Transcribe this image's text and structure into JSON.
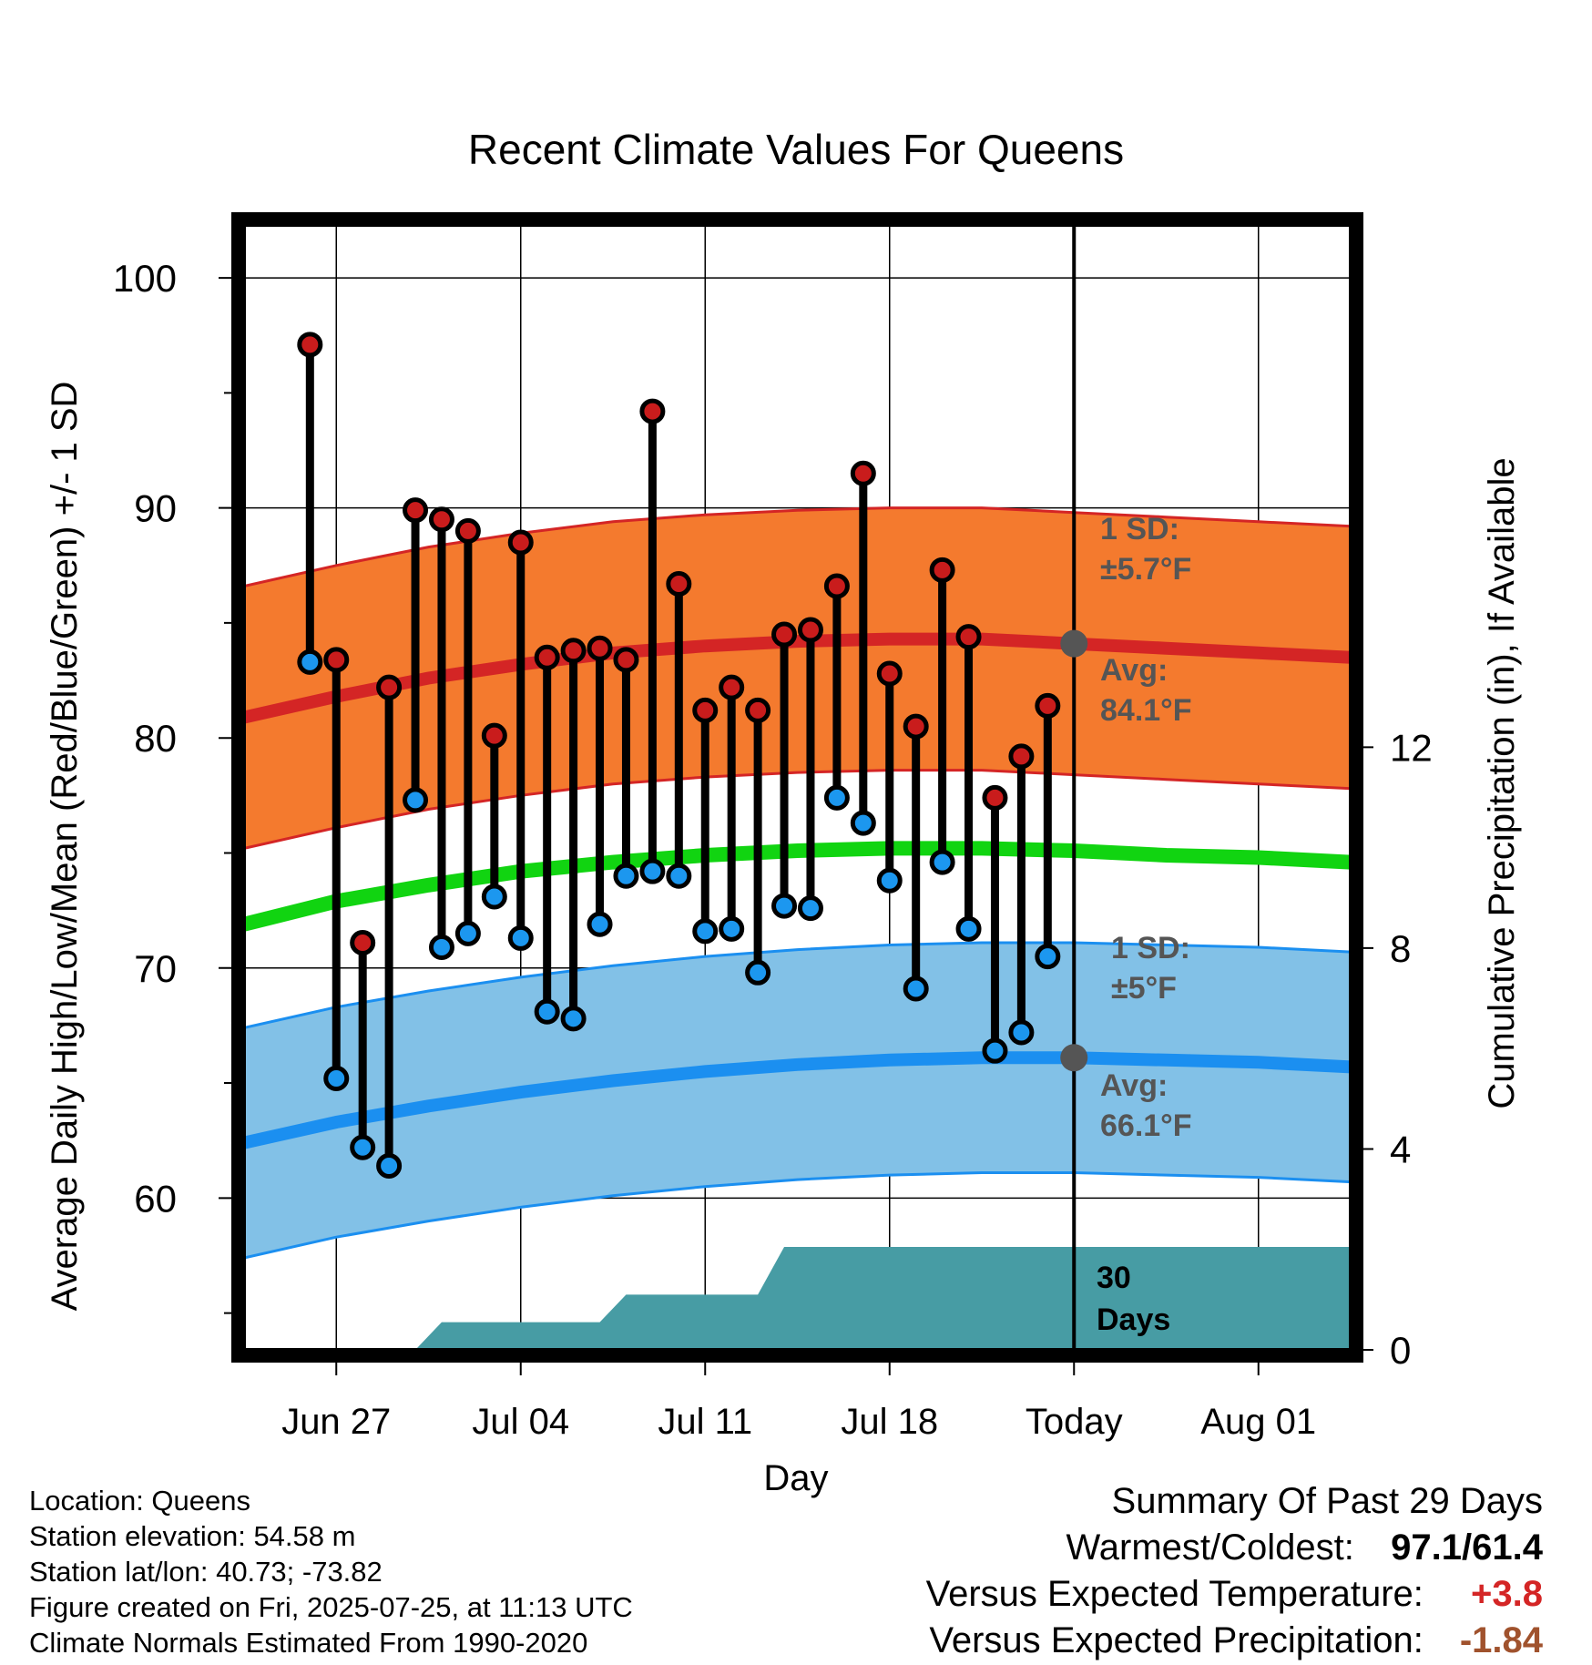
{
  "chart_data": {
    "type": "line",
    "title": "Recent Climate Values For Queens",
    "xlabel": "Day",
    "ylabel": "Average Daily High/Low/Mean (Red/Blue/Green) +/- 1 SD",
    "y2label": "Cumulative Precipitation (in), If Available",
    "xlim": [
      -3.5,
      38.5
    ],
    "ylim": [
      53.4,
      102.3
    ],
    "y2lim": [
      0,
      22.4
    ],
    "x_ticks": [
      {
        "x": 0,
        "label": "Jun 27"
      },
      {
        "x": 7,
        "label": "Jul 04"
      },
      {
        "x": 14,
        "label": "Jul 11"
      },
      {
        "x": 21,
        "label": "Jul 18"
      },
      {
        "x": 28,
        "label": "Today"
      },
      {
        "x": 35,
        "label": "Aug 01"
      }
    ],
    "y_ticks": [
      60,
      70,
      80,
      90,
      100
    ],
    "y2_ticks": [
      0,
      4,
      8,
      12
    ],
    "today_x": 28,
    "grid": true,
    "daily": [
      {
        "day": "Jun 26",
        "high": 97.1,
        "low": 83.3
      },
      {
        "day": "Jun 27",
        "high": 83.4,
        "low": 65.2
      },
      {
        "day": "Jun 28",
        "high": 71.1,
        "low": 62.2
      },
      {
        "day": "Jun 29",
        "high": 82.2,
        "low": 61.4
      },
      {
        "day": "Jun 30",
        "high": 89.9,
        "low": 77.3
      },
      {
        "day": "Jul 01",
        "high": 89.5,
        "low": 70.9
      },
      {
        "day": "Jul 02",
        "high": 89.0,
        "low": 71.5
      },
      {
        "day": "Jul 03",
        "high": 80.1,
        "low": 73.1
      },
      {
        "day": "Jul 04",
        "high": 88.5,
        "low": 71.3
      },
      {
        "day": "Jul 05",
        "high": 83.5,
        "low": 68.1
      },
      {
        "day": "Jul 06",
        "high": 83.8,
        "low": 67.8
      },
      {
        "day": "Jul 07",
        "high": 83.9,
        "low": 71.9
      },
      {
        "day": "Jul 08",
        "high": 83.4,
        "low": 74.0
      },
      {
        "day": "Jul 09",
        "high": 94.2,
        "low": 74.2
      },
      {
        "day": "Jul 10",
        "high": 86.7,
        "low": 74.0
      },
      {
        "day": "Jul 11",
        "high": 81.2,
        "low": 71.6
      },
      {
        "day": "Jul 12",
        "high": 82.2,
        "low": 71.7
      },
      {
        "day": "Jul 13",
        "high": 81.2,
        "low": 69.8
      },
      {
        "day": "Jul 14",
        "high": 84.5,
        "low": 72.7
      },
      {
        "day": "Jul 15",
        "high": 84.7,
        "low": 72.6
      },
      {
        "day": "Jul 16",
        "high": 86.6,
        "low": 77.4
      },
      {
        "day": "Jul 17",
        "high": 91.5,
        "low": 76.3
      },
      {
        "day": "Jul 18",
        "high": 82.8,
        "low": 73.8
      },
      {
        "day": "Jul 19",
        "high": 80.5,
        "low": 69.1
      },
      {
        "day": "Jul 20",
        "high": 87.3,
        "low": 74.6
      },
      {
        "day": "Jul 21",
        "high": 84.4,
        "low": 71.7
      },
      {
        "day": "Jul 22",
        "high": 77.4,
        "low": 66.4
      },
      {
        "day": "Jul 23",
        "high": 79.2,
        "low": 67.2
      },
      {
        "day": "Jul 24",
        "high": 81.4,
        "low": 70.5
      }
    ],
    "normals_x": [
      -3.5,
      0,
      3.5,
      7,
      10.5,
      14,
      17.5,
      21,
      24.5,
      28,
      31.5,
      35,
      38.5
    ],
    "normal_high": [
      80.9,
      81.8,
      82.6,
      83.2,
      83.7,
      84.0,
      84.2,
      84.3,
      84.3,
      84.1,
      83.9,
      83.7,
      83.5
    ],
    "normal_high_sd": 5.7,
    "normal_mean": [
      71.9,
      72.9,
      73.6,
      74.2,
      74.6,
      74.9,
      75.1,
      75.2,
      75.2,
      75.1,
      74.9,
      74.8,
      74.6
    ],
    "normal_low": [
      62.4,
      63.3,
      64.0,
      64.6,
      65.1,
      65.5,
      65.8,
      66.0,
      66.1,
      66.1,
      66.0,
      65.9,
      65.7
    ],
    "normal_low_sd": 5.0,
    "cumulative_precip": [
      [
        -3.5,
        0
      ],
      [
        0,
        0
      ],
      [
        3,
        0
      ],
      [
        4,
        0.55
      ],
      [
        10,
        0.55
      ],
      [
        11,
        1.1
      ],
      [
        16,
        1.1
      ],
      [
        17,
        2.05
      ],
      [
        38.5,
        2.05
      ]
    ],
    "annotations": {
      "high_sd_line1": "1 SD:",
      "high_sd_line2": "±5.7°F",
      "high_avg_line1": "Avg:",
      "high_avg_line2": "84.1°F",
      "low_sd_line1": "1 SD:",
      "low_sd_line2": "±5°F",
      "low_avg_line1": "Avg:",
      "low_avg_line2": "66.1°F",
      "precip_line1": "30",
      "precip_line2": "Days"
    },
    "colors": {
      "high_band": "#f47a2e",
      "high_line": "#d42525",
      "mean_line": "#11d411",
      "low_band": "#82c1e7",
      "low_line": "#1b8ff0",
      "precip": "#479ca4",
      "high_dot": "#c91c1c",
      "low_dot": "#1c97ef",
      "today_dot": "#555555"
    }
  },
  "info": {
    "location": "Location: Queens",
    "elevation": "Station elevation: 54.58 m",
    "latlon": "Station lat/lon: 40.73; -73.82",
    "created": "Figure created on Fri, 2025-07-25, at 11:13 UTC",
    "normals": "Climate Normals Estimated From 1990-2020"
  },
  "summary": {
    "heading": "Summary Of Past 29 Days",
    "warm_cold_label": "Warmest/Coldest:",
    "warm_cold_value": "97.1/61.4",
    "temp_label": "Versus Expected Temperature:",
    "temp_value": "+3.8",
    "temp_color": "#d42525",
    "precip_label": "Versus Expected Precipitation:",
    "precip_value": "-1.84",
    "precip_color": "#a0522d"
  }
}
